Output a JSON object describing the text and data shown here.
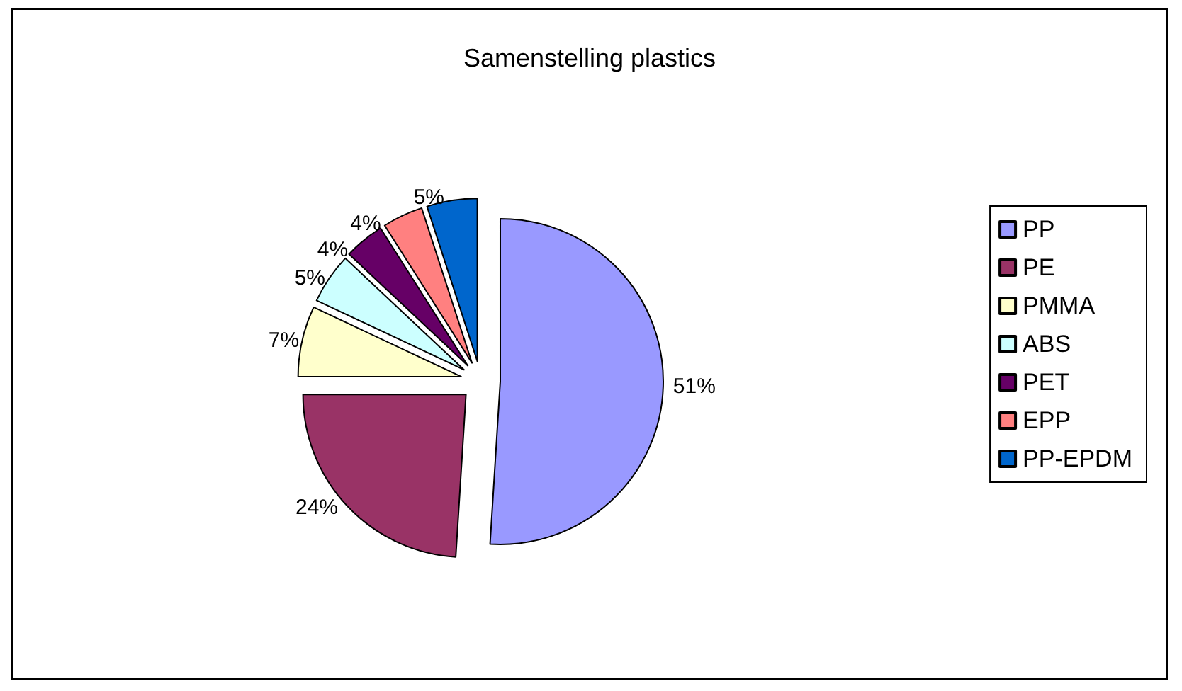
{
  "chart_data": {
    "type": "pie",
    "title": "Samenstelling plastics",
    "categories": [
      "PP",
      "PE",
      "PMMA",
      "ABS",
      "PET",
      "EPP",
      "PP-EPDM"
    ],
    "values": [
      51,
      24,
      7,
      5,
      4,
      4,
      5
    ],
    "value_labels": [
      "51%",
      "24%",
      "7%",
      "5%",
      "4%",
      "4%",
      "5%"
    ],
    "colors": [
      "#9999ff",
      "#993366",
      "#ffffcc",
      "#ccffff",
      "#660066",
      "#ff8080",
      "#0066cc"
    ],
    "legend": "right"
  }
}
